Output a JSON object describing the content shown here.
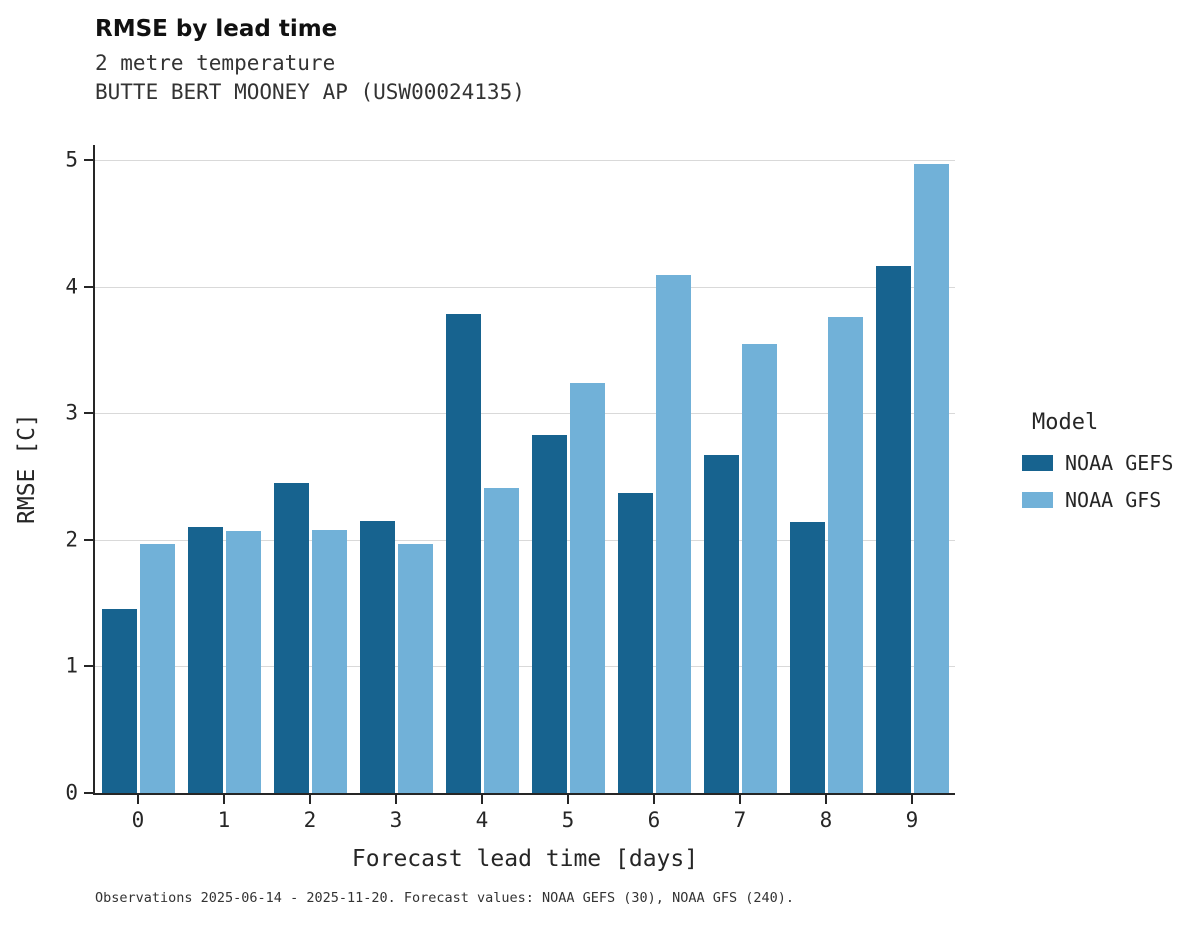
{
  "header": {
    "title": "RMSE by lead time",
    "subtitle_variable": "2 metre temperature",
    "subtitle_station": "BUTTE BERT MOONEY AP (USW00024135)"
  },
  "footer": {
    "caption": "Observations 2025-06-14 - 2025-11-20. Forecast values: NOAA GEFS (30), NOAA GFS (240)."
  },
  "legend": {
    "title": "Model",
    "entries": [
      {
        "label": "NOAA GEFS",
        "color": "#17638f"
      },
      {
        "label": "NOAA GFS",
        "color": "#71b1d8"
      }
    ]
  },
  "chart_data": {
    "type": "bar",
    "title": "RMSE by lead time",
    "subtitle": "2 metre temperature — BUTTE BERT MOONEY AP (USW00024135)",
    "xlabel": "Forecast lead time [days]",
    "ylabel": "RMSE [C]",
    "categories": [
      "0",
      "1",
      "2",
      "3",
      "4",
      "5",
      "6",
      "7",
      "8",
      "9"
    ],
    "series": [
      {
        "name": "NOAA GEFS",
        "color": "#17638f",
        "values": [
          1.45,
          2.1,
          2.45,
          2.15,
          3.78,
          2.83,
          2.37,
          2.67,
          2.14,
          4.16
        ]
      },
      {
        "name": "NOAA GFS",
        "color": "#71b1d8",
        "values": [
          1.97,
          2.07,
          2.08,
          1.97,
          2.41,
          3.24,
          4.09,
          3.55,
          3.76,
          4.97
        ]
      }
    ],
    "ylim": [
      0,
      5.12
    ],
    "yticks": [
      0,
      1,
      2,
      3,
      4,
      5
    ],
    "grid": true,
    "legend_position": "right"
  }
}
